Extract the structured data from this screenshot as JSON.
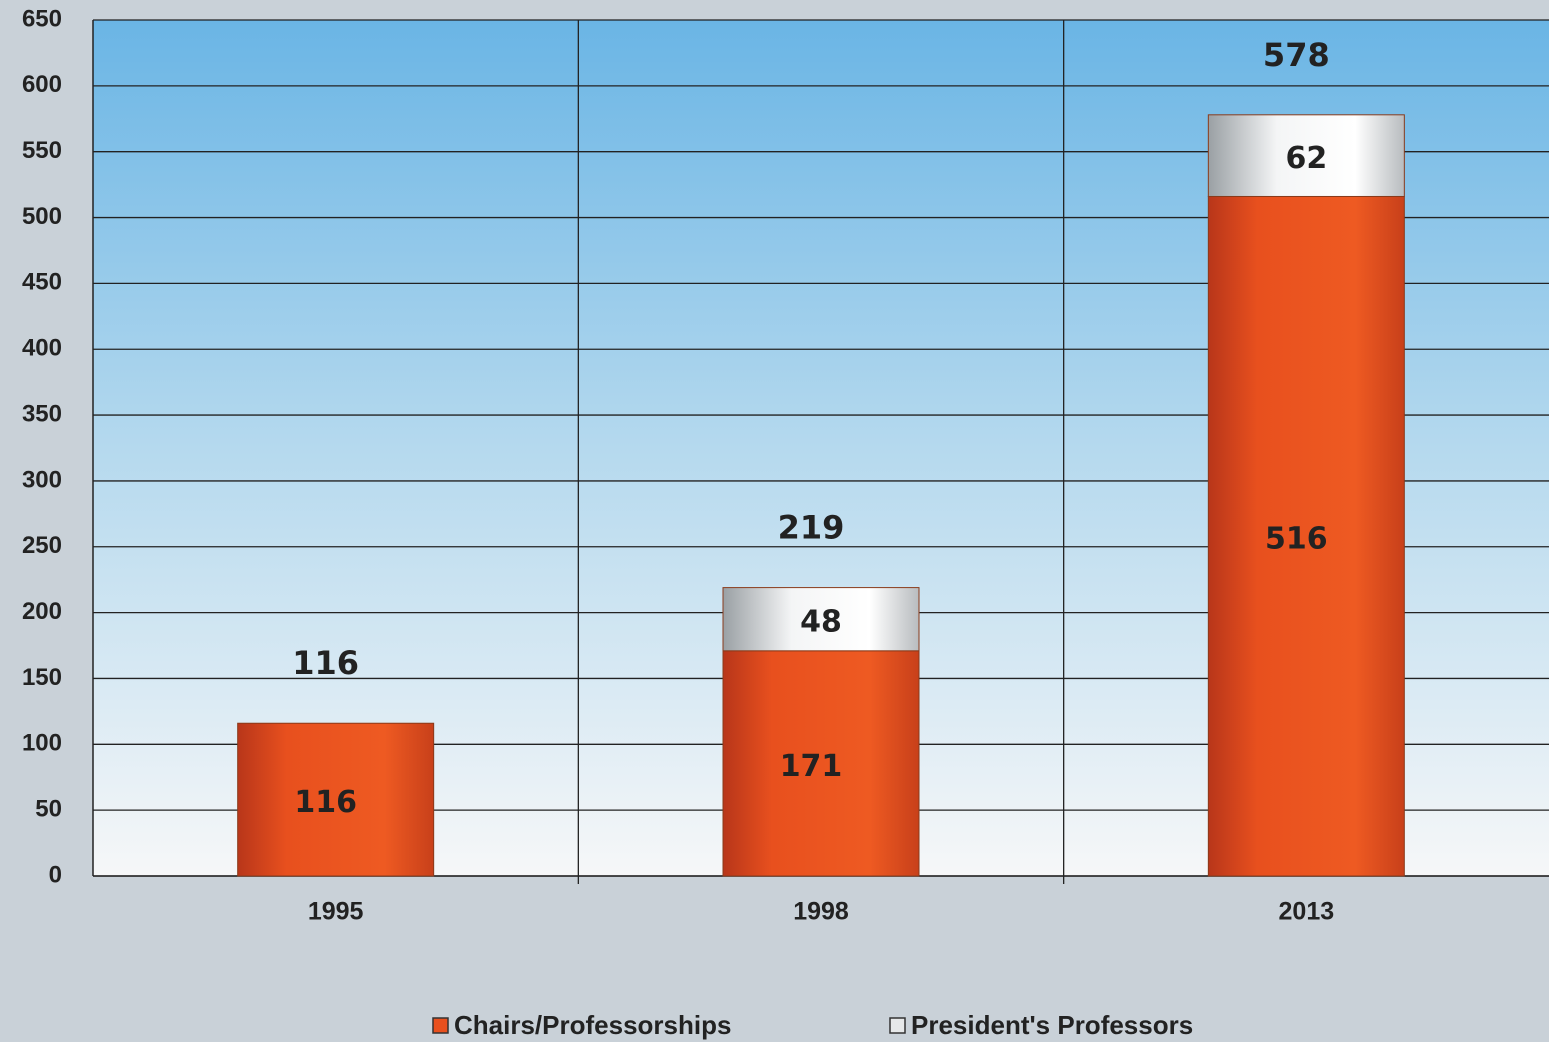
{
  "chart_data": {
    "type": "bar",
    "stacked": true,
    "categories": [
      "1995",
      "1998",
      "2013"
    ],
    "series": [
      {
        "name": "Chairs/Professorships",
        "color": "#e8501e",
        "values": [
          116,
          171,
          516
        ]
      },
      {
        "name": "President's Professors",
        "color": "#e6e8e9",
        "values": [
          null,
          48,
          62
        ]
      }
    ],
    "totals": [
      116,
      219,
      578
    ],
    "ylim": [
      0,
      650
    ],
    "yticks": [
      0,
      50,
      100,
      150,
      200,
      250,
      300,
      350,
      400,
      450,
      500,
      550,
      600,
      650
    ],
    "grid": true,
    "legend": "bottom"
  }
}
